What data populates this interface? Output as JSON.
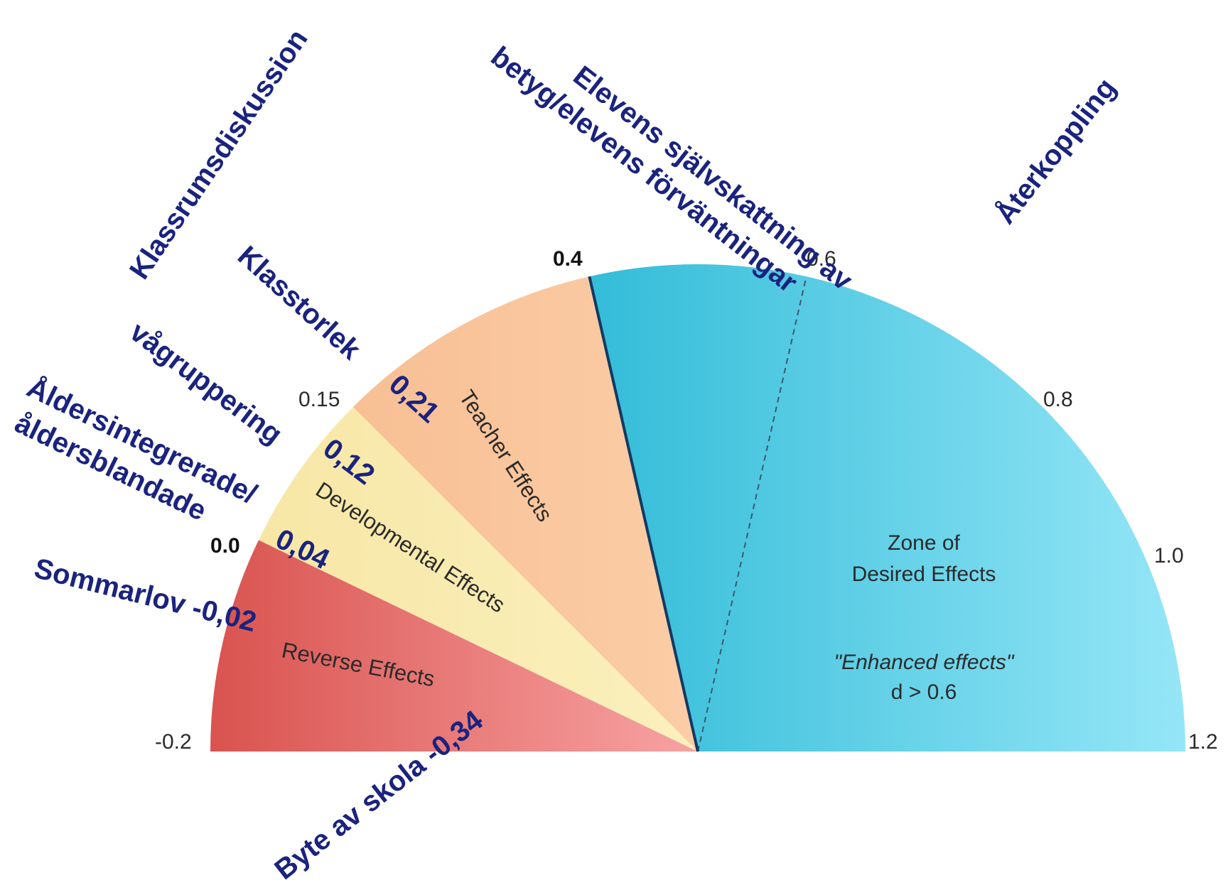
{
  "chart_data": {
    "type": "gauge",
    "scale": {
      "min": -0.2,
      "max": 1.2
    },
    "tick_labels": [
      {
        "value": -0.2,
        "label": "-0.2",
        "bold": false
      },
      {
        "value": 0.0,
        "label": "0.0",
        "bold": true
      },
      {
        "value": 0.15,
        "label": "0.15",
        "bold": false
      },
      {
        "value": 0.4,
        "label": "0.4",
        "bold": true
      },
      {
        "value": 0.6,
        "label": "0.6",
        "bold": false
      },
      {
        "value": 0.8,
        "label": "0.8",
        "bold": false
      },
      {
        "value": 1.0,
        "label": "1.0",
        "bold": false
      },
      {
        "value": 1.2,
        "label": "1.2",
        "bold": false
      }
    ],
    "zones": [
      {
        "name": "Reverse Effects",
        "from": -0.2,
        "to": 0.0,
        "color_start": "#d9534f",
        "color_end": "#f7a3a3"
      },
      {
        "name": "Developmental Effects",
        "from": 0.0,
        "to": 0.15,
        "color_start": "#f7e7a6",
        "color_end": "#fbf0bd"
      },
      {
        "name": "Teacher Effects",
        "from": 0.15,
        "to": 0.4,
        "color_start": "#f8bf94",
        "color_end": "#fbcda6"
      },
      {
        "name": "Zone of Desired Effects",
        "from": 0.4,
        "to": 1.2,
        "color_start": "#33bcd8",
        "color_end": "#95e6f7"
      }
    ],
    "hinge_line": 0.4,
    "enhanced_line": 0.6,
    "desired_zone_text": {
      "line1": "Zone of",
      "line2": "Desired Effects",
      "note": "\"Enhanced effects\"",
      "condition": "d > 0.6"
    },
    "annotations": [
      {
        "text": "Klassrumsdiskussion"
      },
      {
        "text": "Klasstorlek"
      },
      {
        "text": "0,21"
      },
      {
        "text": "vågruppering"
      },
      {
        "text": "0,12"
      },
      {
        "text": "Åldersintegrerade/"
      },
      {
        "text": "åldersblandade"
      },
      {
        "text": "0,04"
      },
      {
        "text": "Sommarlov -0,02"
      },
      {
        "text": "Byte av skola -0,34"
      },
      {
        "text": "Elevens självskattning av"
      },
      {
        "text": "betyg/elevens förväntningar"
      },
      {
        "text": "Återkoppling"
      }
    ],
    "colors": {
      "annotation": "#1a237e",
      "hinge": "#123a63"
    }
  }
}
